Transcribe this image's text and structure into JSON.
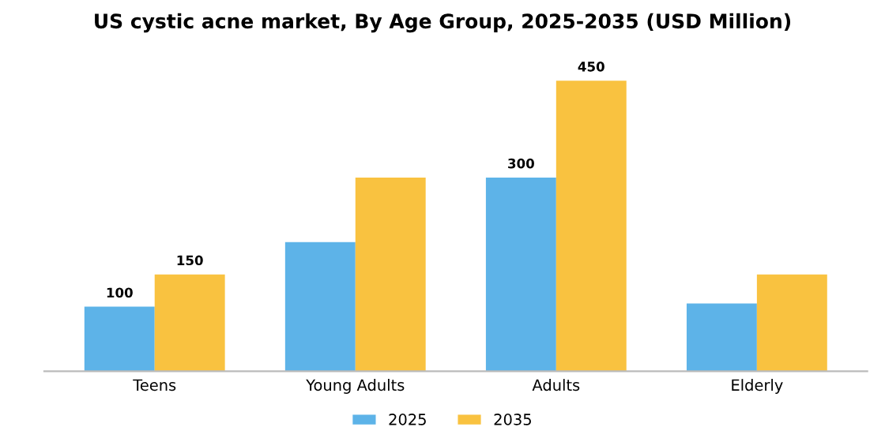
{
  "chart_data": {
    "type": "bar",
    "title": "US cystic acne market, By Age Group, 2025-2035 (USD Million)",
    "categories": [
      "Teens",
      "Young Adults",
      "Adults",
      "Elderly"
    ],
    "series": [
      {
        "name": "2025",
        "color": "#5db3e8",
        "values": [
          100,
          200,
          300,
          105
        ],
        "value_labels": [
          "100",
          null,
          "300",
          null
        ]
      },
      {
        "name": "2035",
        "color": "#f9c240",
        "values": [
          150,
          300,
          450,
          150
        ],
        "value_labels": [
          "150",
          null,
          "450",
          null
        ]
      }
    ],
    "tick_labels": "x",
    "legend": "bottom",
    "grid": false
  }
}
